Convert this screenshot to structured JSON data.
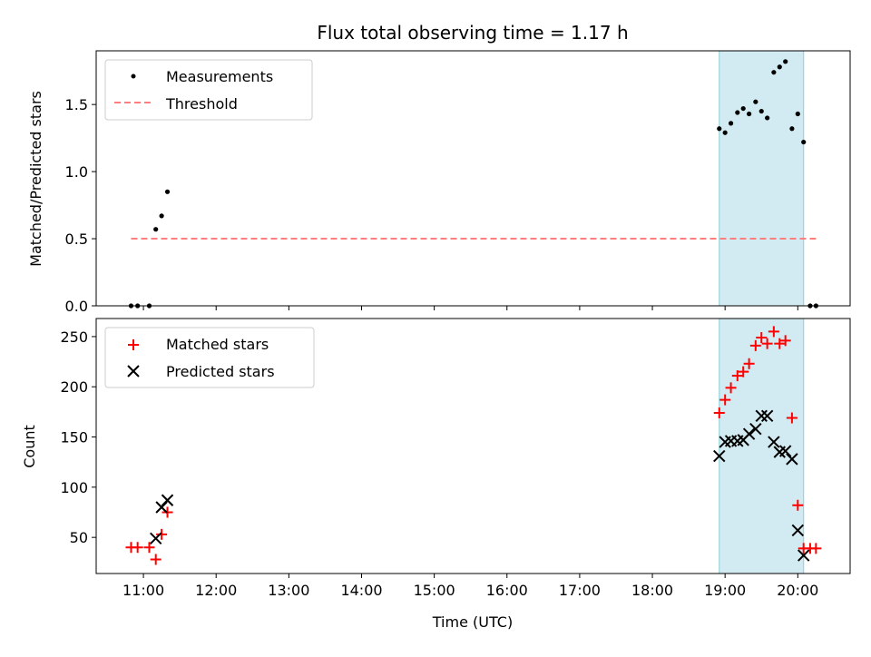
{
  "chart_data": [
    {
      "type": "scatter",
      "title": "Flux total observing time = 1.17 h",
      "xlabel": "",
      "ylabel": "Matched/Predicted stars",
      "xlim": [
        10.35,
        20.72
      ],
      "ylim": [
        0,
        1.9
      ],
      "yticks": [
        0.0,
        0.5,
        1.0,
        1.5
      ],
      "ytick_labels": [
        "0.0",
        "0.5",
        "1.0",
        "1.5"
      ],
      "shaded_region": {
        "x_start": 18.92,
        "x_end": 20.08,
        "color": "#add8e6"
      },
      "legend": {
        "position": "top-left"
      },
      "series": [
        {
          "name": "Measurements",
          "kind": "points",
          "color": "#000000",
          "x": [
            10.83,
            10.92,
            11.08,
            11.17,
            11.25,
            11.33,
            18.92,
            19.0,
            19.08,
            19.17,
            19.25,
            19.33,
            19.42,
            19.5,
            19.58,
            19.67,
            19.75,
            19.83,
            19.92,
            20.0,
            20.08,
            20.17,
            20.25
          ],
          "y": [
            0.0,
            0.0,
            0.0,
            0.57,
            0.67,
            0.85,
            1.32,
            1.29,
            1.36,
            1.44,
            1.47,
            1.43,
            1.52,
            1.45,
            1.4,
            1.74,
            1.78,
            1.82,
            1.32,
            1.43,
            1.22,
            0.0,
            0.0
          ]
        },
        {
          "name": "Threshold",
          "kind": "dashed-line",
          "color": "#ff7f7f",
          "x": [
            10.83,
            20.25
          ],
          "y": [
            0.5,
            0.5
          ]
        }
      ]
    },
    {
      "type": "scatter",
      "title": "",
      "xlabel": "Time (UTC)",
      "ylabel": "Count",
      "xlim": [
        10.35,
        20.72
      ],
      "ylim": [
        14,
        268
      ],
      "yticks": [
        50,
        100,
        150,
        200,
        250
      ],
      "ytick_labels": [
        "50",
        "100",
        "150",
        "200",
        "250"
      ],
      "xticks": [
        11,
        12,
        13,
        14,
        15,
        16,
        17,
        18,
        19,
        20
      ],
      "xtick_labels": [
        "11:00",
        "12:00",
        "13:00",
        "14:00",
        "15:00",
        "16:00",
        "17:00",
        "18:00",
        "19:00",
        "20:00"
      ],
      "shaded_region": {
        "x_start": 18.92,
        "x_end": 20.08,
        "color": "#add8e6"
      },
      "legend": {
        "position": "top-left"
      },
      "series": [
        {
          "name": "Matched stars",
          "kind": "plus",
          "color": "#ff0000",
          "x": [
            10.83,
            10.92,
            11.08,
            11.17,
            11.25,
            11.33,
            18.92,
            19.0,
            19.08,
            19.17,
            19.25,
            19.33,
            19.42,
            19.5,
            19.58,
            19.67,
            19.75,
            19.83,
            19.92,
            20.0,
            20.08,
            20.17,
            20.25
          ],
          "y": [
            40,
            40,
            40,
            28,
            53,
            75,
            174,
            187,
            199,
            211,
            215,
            223,
            241,
            249,
            243,
            255,
            243,
            246,
            169,
            82,
            39,
            39,
            39
          ]
        },
        {
          "name": "Predicted stars",
          "kind": "cross",
          "color": "#000000",
          "x": [
            11.17,
            11.25,
            11.33,
            18.92,
            19.0,
            19.08,
            19.17,
            19.25,
            19.33,
            19.42,
            19.5,
            19.58,
            19.67,
            19.75,
            19.83,
            19.92,
            20.0,
            20.08
          ],
          "y": [
            49,
            80,
            87,
            131,
            145,
            146,
            146,
            147,
            153,
            158,
            171,
            171,
            145,
            135,
            136,
            128,
            57,
            32
          ]
        }
      ]
    }
  ]
}
